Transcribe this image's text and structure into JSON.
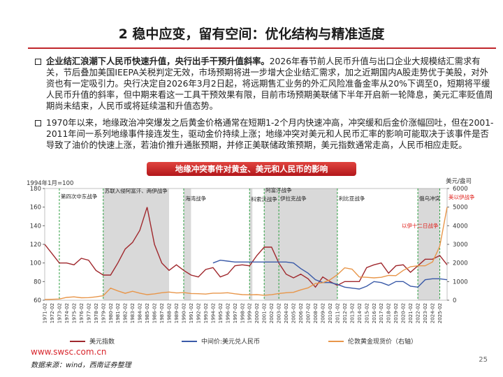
{
  "header": {
    "title": "2 稳中应变，留有空间：优化结构与精准适度"
  },
  "bullets": [
    {
      "bold": "企业结汇浪潮下人民币快速升值，央行出手干预升值斜率。",
      "text": "2026年春节前人民币升值与出口企业大规模结汇需求有关，节后叠加美国IEEPA关税判定无效，市场预期将进一步增大企业结汇需求，加之近期国内A股走势优于美股，对外资也有一定吸引力。央行决定自2026年3月2日起，将远期售汇业务的外汇风险准备金率从20%下调至0，短期将平缓人民币升值的斜率，但中期来看这一工具干预效果有限，目前市场预期美联储下半年开启新一轮降息，美元汇率贬值周期尚未结束，人民币或将延续温和升值态势。"
    },
    {
      "bold": "",
      "text": "1970年以来，地缘政治冲突爆发之后黄金价格通常在短期1-2个月内快速冲高，冲突缓和后金价涨幅回吐，但在2001-2011年间一系列地缘事件接连发生，驱动金价持续上涨；地缘冲突对美元和人民币汇率的影响可能取决于该事件是否导致了油价的快速上涨，若油价推升通胀预期，并修正美联储政策预期，美元指数通常走高，人民币相应走贬。"
    }
  ],
  "chart_data": {
    "type": "line",
    "title": "地缘冲突事件对黄金、美元和人民币的影响",
    "y_label": "1994年1月=100",
    "y2_label": "美元/盎司",
    "categories": [
      "1971-02",
      "1972-02",
      "1973-02",
      "1974-02",
      "1975-02",
      "1976-02",
      "1977-02",
      "1978-02",
      "1979-02",
      "1980-02",
      "1981-02",
      "1982-02",
      "1983-02",
      "1984-02",
      "1985-02",
      "1986-02",
      "1987-02",
      "1988-02",
      "1989-02",
      "1990-02",
      "1991-02",
      "1992-02",
      "1993-02",
      "1994-02",
      "1995-02",
      "1996-02",
      "1997-02",
      "1998-02",
      "1999-02",
      "2000-02",
      "2001-02",
      "2002-02",
      "2003-02",
      "2004-02",
      "2005-02",
      "2006-02",
      "2007-02",
      "2008-02",
      "2009-02",
      "2010-02",
      "2011-02",
      "2012-02",
      "2013-02",
      "2014-02",
      "2015-02",
      "2016-02",
      "2017-02",
      "2018-02",
      "2019-02",
      "2020-02",
      "2021-02",
      "2022-02",
      "2023-02",
      "2024-02",
      "2025-02",
      null
    ],
    "series": [
      {
        "name": "美元指数",
        "color": "#a0282d",
        "values": [
          120,
          110,
          100,
          100,
          98,
          105,
          103,
          92,
          87,
          87,
          100,
          115,
          122,
          135,
          160,
          120,
          100,
          92,
          98,
          92,
          87,
          85,
          93,
          95,
          85,
          88,
          97,
          98,
          97,
          108,
          117,
          117,
          100,
          88,
          84,
          88,
          83,
          74,
          85,
          80,
          76,
          80,
          80,
          80,
          95,
          98,
          100,
          89,
          97,
          98,
          90,
          97,
          104,
          104,
          108,
          98
        ]
      },
      {
        "name": "中间价:美元兑人民币",
        "color": "#3a5aa8",
        "values": [
          null,
          null,
          null,
          null,
          null,
          null,
          null,
          null,
          null,
          null,
          null,
          null,
          null,
          null,
          null,
          null,
          null,
          null,
          null,
          null,
          null,
          null,
          null,
          100,
          103,
          102,
          101,
          101,
          101,
          101,
          101,
          101,
          101,
          101,
          100,
          94,
          89,
          82,
          79,
          79,
          77,
          74,
          73,
          72,
          75,
          80,
          79,
          76,
          80,
          80,
          75,
          74,
          82,
          83,
          83,
          82
        ]
      },
      {
        "name": "伦敦黄金现货价（右轴）",
        "color": "#e8964a",
        "axis": "y2",
        "values": [
          40,
          48,
          65,
          150,
          180,
          130,
          140,
          180,
          240,
          650,
          500,
          370,
          480,
          380,
          300,
          340,
          400,
          440,
          390,
          410,
          360,
          350,
          330,
          380,
          380,
          400,
          345,
          300,
          290,
          300,
          265,
          295,
          360,
          400,
          425,
          555,
          665,
          900,
          940,
          1100,
          1370,
          1740,
          1670,
          1250,
          1230,
          1200,
          1230,
          1330,
          1320,
          1600,
          1800,
          1850,
          1850,
          2050,
          2900,
          5000
        ]
      }
    ],
    "ylim": [
      60,
      180
    ],
    "yticks": [
      60,
      80,
      100,
      120,
      140,
      160,
      180
    ],
    "y2lim": [
      0,
      6000
    ],
    "y2ticks": [
      0,
      1000,
      2000,
      3000,
      4000,
      5000,
      6000
    ],
    "periods": [
      {
        "start": "1979-02",
        "end": "1988-02"
      },
      {
        "start": "1990-02",
        "end": "1991-02"
      },
      {
        "start": "1999-02",
        "end": "1999-02"
      },
      {
        "start": "2001-02",
        "end": "2011-02"
      },
      {
        "start": "2022-02",
        "end": "2025-02"
      }
    ],
    "events": [
      {
        "label": "第四次中东战争",
        "x": "1973-02"
      },
      {
        "label": "苏联入侵阿富汗、两伊战争",
        "x": "1979-02"
      },
      {
        "label": "海湾战争",
        "x": "1990-02"
      },
      {
        "label": "科索沃战争",
        "x": "1999-02"
      },
      {
        "label": "阿富汗战争",
        "x": "2001-02"
      },
      {
        "label": "伊拉克战争",
        "x": "2003-02"
      },
      {
        "label": "利比亚战争",
        "x": "2011-02"
      },
      {
        "label": "俄乌冲突",
        "x": "2022-02"
      },
      {
        "label": "以伊十二日战争",
        "x": "2025-02",
        "color": "#e0201b"
      }
    ],
    "extra_label": {
      "label": "美以伊战争",
      "color": "#e0201b"
    }
  },
  "footer": {
    "site": "www.swsc.com.cn",
    "source": "数据来源：wind，西南证券整理",
    "page": "25"
  }
}
